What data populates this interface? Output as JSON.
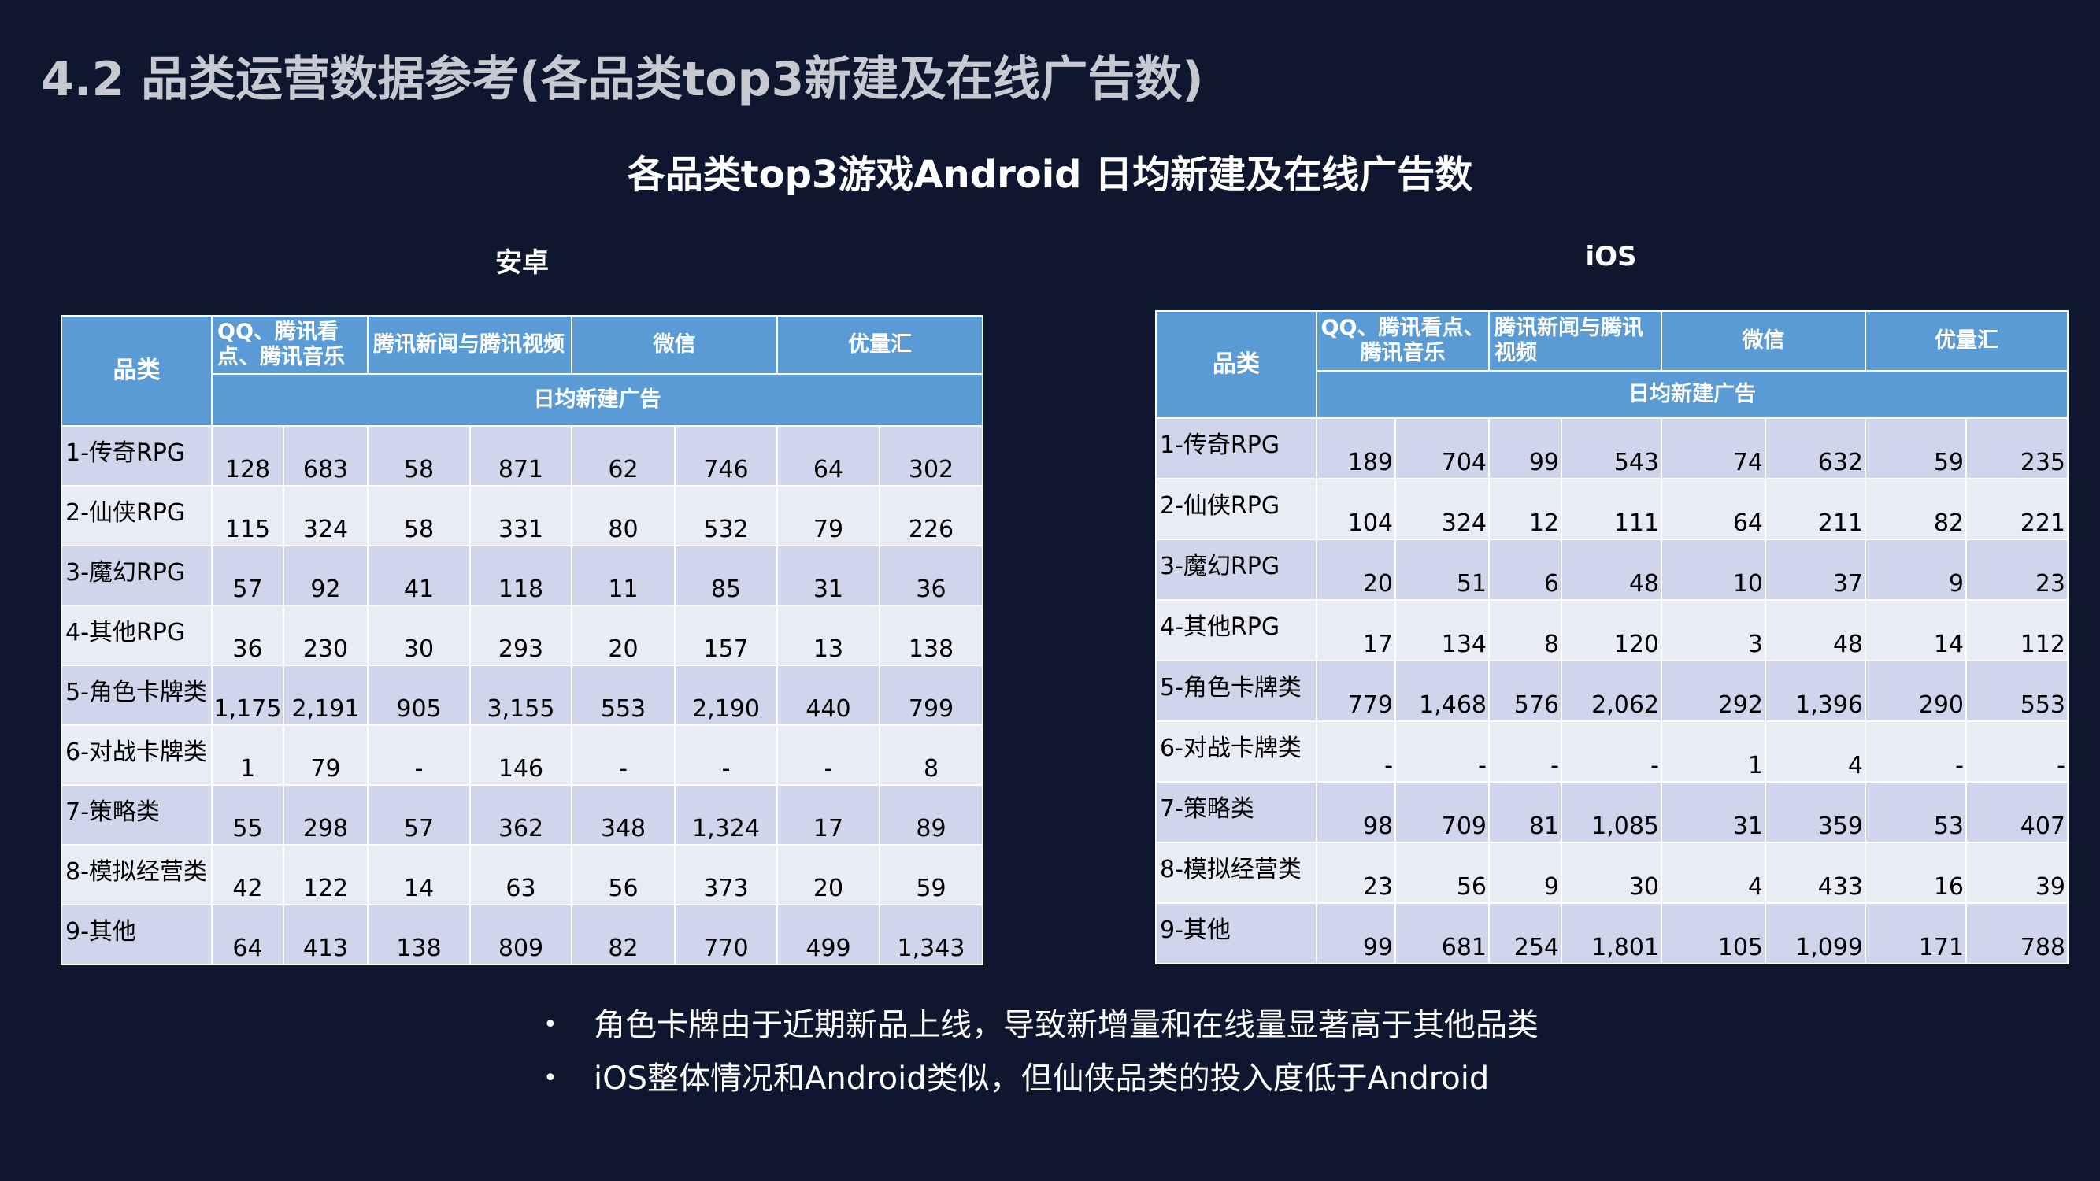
{
  "page_title": "4.2 品类运营数据参考(各品类top3新建及在线广告数)",
  "sub_title": "各品类top3游戏Android 日均新建及在线广告数",
  "android": {
    "label": "安卓",
    "corner": "品类",
    "platforms": [
      "QQ、腾讯看点、腾讯音乐",
      "腾讯新闻与腾讯视频",
      "微信",
      "优量汇"
    ],
    "metric_header": "日均新建广告",
    "rows": [
      {
        "category": "1-传奇RPG",
        "values": [
          "128",
          "683",
          "58",
          "871",
          "62",
          "746",
          "64",
          "302"
        ]
      },
      {
        "category": "2-仙侠RPG",
        "values": [
          "115",
          "324",
          "58",
          "331",
          "80",
          "532",
          "79",
          "226"
        ]
      },
      {
        "category": "3-魔幻RPG",
        "values": [
          "57",
          "92",
          "41",
          "118",
          "11",
          "85",
          "31",
          "36"
        ]
      },
      {
        "category": "4-其他RPG",
        "values": [
          "36",
          "230",
          "30",
          "293",
          "20",
          "157",
          "13",
          "138"
        ]
      },
      {
        "category": "5-角色卡牌类",
        "values": [
          "1,175",
          "2,191",
          "905",
          "3,155",
          "553",
          "2,190",
          "440",
          "799"
        ]
      },
      {
        "category": "6-对战卡牌类",
        "values": [
          "1",
          "79",
          "-",
          "146",
          "-",
          "-",
          "-",
          "8"
        ]
      },
      {
        "category": "7-策略类",
        "values": [
          "55",
          "298",
          "57",
          "362",
          "348",
          "1,324",
          "17",
          "89"
        ]
      },
      {
        "category": "8-模拟经营类",
        "values": [
          "42",
          "122",
          "14",
          "63",
          "56",
          "373",
          "20",
          "59"
        ]
      },
      {
        "category": "9-其他",
        "values": [
          "64",
          "413",
          "138",
          "809",
          "82",
          "770",
          "499",
          "1,343"
        ]
      }
    ]
  },
  "ios": {
    "label": "iOS",
    "corner": "品类",
    "platforms": [
      "QQ、腾讯看点、腾讯音乐",
      "腾讯新闻与腾讯视频",
      "微信",
      "优量汇"
    ],
    "metric_header": "日均新建广告",
    "rows": [
      {
        "category": "1-传奇RPG",
        "values": [
          "189",
          "704",
          "99",
          "543",
          "74",
          "632",
          "59",
          "235"
        ]
      },
      {
        "category": "2-仙侠RPG",
        "values": [
          "104",
          "324",
          "12",
          "111",
          "64",
          "211",
          "82",
          "221"
        ]
      },
      {
        "category": "3-魔幻RPG",
        "values": [
          "20",
          "51",
          "6",
          "48",
          "10",
          "37",
          "9",
          "23"
        ]
      },
      {
        "category": "4-其他RPG",
        "values": [
          "17",
          "134",
          "8",
          "120",
          "3",
          "48",
          "14",
          "112"
        ]
      },
      {
        "category": "5-角色卡牌类",
        "values": [
          "779",
          "1,468",
          "576",
          "2,062",
          "292",
          "1,396",
          "290",
          "553"
        ]
      },
      {
        "category": "6-对战卡牌类",
        "values": [
          "-",
          "-",
          "-",
          "-",
          "1",
          "4",
          "-",
          "-"
        ]
      },
      {
        "category": "7-策略类",
        "values": [
          "98",
          "709",
          "81",
          "1,085",
          "31",
          "359",
          "53",
          "407"
        ]
      },
      {
        "category": "8-模拟经营类",
        "values": [
          "23",
          "56",
          "9",
          "30",
          "4",
          "433",
          "16",
          "39"
        ]
      },
      {
        "category": "9-其他",
        "values": [
          "99",
          "681",
          "254",
          "1,801",
          "105",
          "1,099",
          "171",
          "788"
        ]
      }
    ]
  },
  "bullets": [
    "角色卡牌由于近期新品上线，导致新增量和在线量显著高于其他品类",
    "iOS整体情况和Android类似，但仙侠品类的投入度低于Android"
  ],
  "bullet_glyph": "•"
}
